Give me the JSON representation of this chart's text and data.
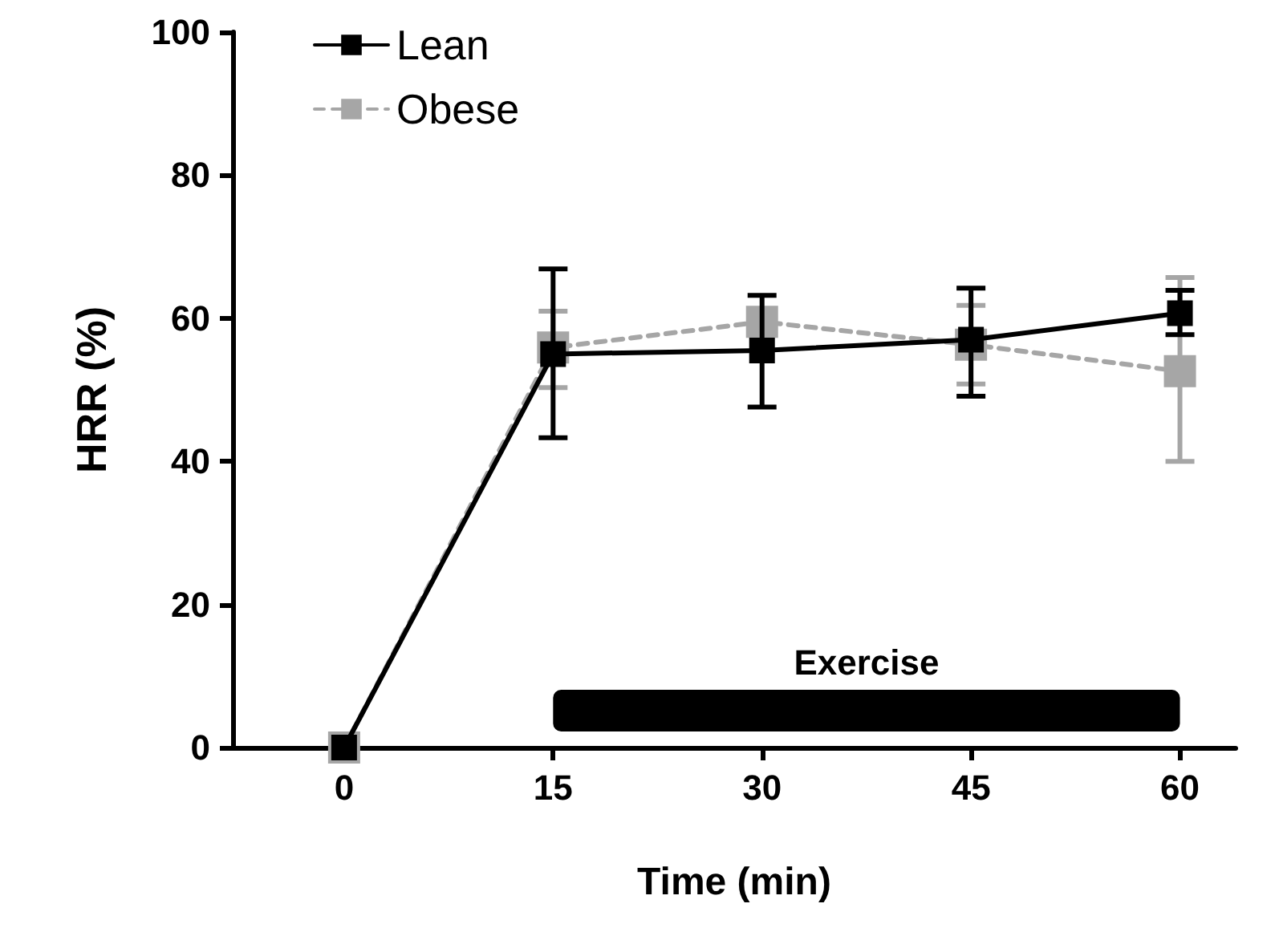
{
  "chart_data": {
    "type": "line",
    "xlabel": "Time (min)",
    "ylabel": "HRR (%)",
    "x": [
      0,
      15,
      30,
      45,
      60
    ],
    "xlim": [
      -8,
      64
    ],
    "xticks": [
      0,
      15,
      30,
      45,
      60
    ],
    "ylim": [
      0,
      100
    ],
    "yticks": [
      0,
      20,
      40,
      60,
      80,
      100
    ],
    "series": [
      {
        "name": "Lean",
        "color": "#000000",
        "line_style": "solid",
        "values": [
          0,
          55,
          55.5,
          57,
          60.7
        ],
        "errors": [
          null,
          [
            43.3,
            66.9
          ],
          [
            47.6,
            63.2
          ],
          [
            49.1,
            64.2
          ],
          [
            57.7,
            63.9
          ]
        ]
      },
      {
        "name": "Obese",
        "color": "#a6a6a6",
        "line_style": "dashed",
        "values": [
          0,
          55.9,
          59.5,
          56.3,
          52.6
        ],
        "errors": [
          null,
          [
            50.3,
            61
          ],
          null,
          [
            50.8,
            61.8
          ],
          [
            40,
            65.7
          ]
        ]
      }
    ],
    "bands": [
      {
        "axis": "x",
        "from": 15,
        "to": 60,
        "label": "Exercise",
        "color": "#000000"
      }
    ],
    "marker": "square",
    "legend": "top left",
    "grid": false
  }
}
